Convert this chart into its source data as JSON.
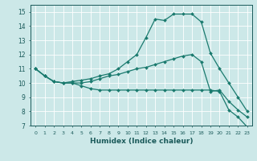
{
  "xlabel": "Humidex (Indice chaleur)",
  "bg_color": "#cce8e8",
  "line_color": "#1a7a6e",
  "grid_color": "#ffffff",
  "xlim": [
    -0.5,
    23.5
  ],
  "ylim": [
    7,
    15.5
  ],
  "xticks": [
    0,
    1,
    2,
    3,
    4,
    5,
    6,
    7,
    8,
    9,
    10,
    11,
    12,
    13,
    14,
    15,
    16,
    17,
    18,
    19,
    20,
    21,
    22,
    23
  ],
  "yticks": [
    7,
    8,
    9,
    10,
    11,
    12,
    13,
    14,
    15
  ],
  "line1_x": [
    0,
    1,
    2,
    3,
    4,
    5,
    6,
    7,
    8,
    9,
    10,
    11,
    12,
    13,
    14,
    15,
    16,
    17,
    18,
    19,
    20,
    21,
    22,
    23
  ],
  "line1_y": [
    11.0,
    10.5,
    10.1,
    10.0,
    10.1,
    10.2,
    10.3,
    10.5,
    10.65,
    11.0,
    11.5,
    12.0,
    13.2,
    14.5,
    14.4,
    14.85,
    14.85,
    14.85,
    14.3,
    12.1,
    11.0,
    10.0,
    9.0,
    8.0
  ],
  "line2_x": [
    0,
    1,
    2,
    3,
    4,
    5,
    6,
    7,
    8,
    9,
    10,
    11,
    12,
    13,
    14,
    15,
    16,
    17,
    18,
    19,
    20,
    21,
    22,
    23
  ],
  "line2_y": [
    11.0,
    10.5,
    10.1,
    10.0,
    10.0,
    10.0,
    10.1,
    10.3,
    10.5,
    10.6,
    10.8,
    11.0,
    11.1,
    11.3,
    11.5,
    11.7,
    11.9,
    12.0,
    11.5,
    9.4,
    9.5,
    8.7,
    8.1,
    7.6
  ],
  "line3_x": [
    0,
    1,
    2,
    3,
    4,
    5,
    6,
    7,
    8,
    9,
    10,
    11,
    12,
    13,
    14,
    15,
    16,
    17,
    18,
    19,
    20,
    21,
    22,
    23
  ],
  "line3_y": [
    11.0,
    10.5,
    10.1,
    10.0,
    10.0,
    9.8,
    9.6,
    9.5,
    9.5,
    9.5,
    9.5,
    9.5,
    9.5,
    9.5,
    9.5,
    9.5,
    9.5,
    9.5,
    9.5,
    9.5,
    9.4,
    8.1,
    7.6,
    6.9
  ]
}
